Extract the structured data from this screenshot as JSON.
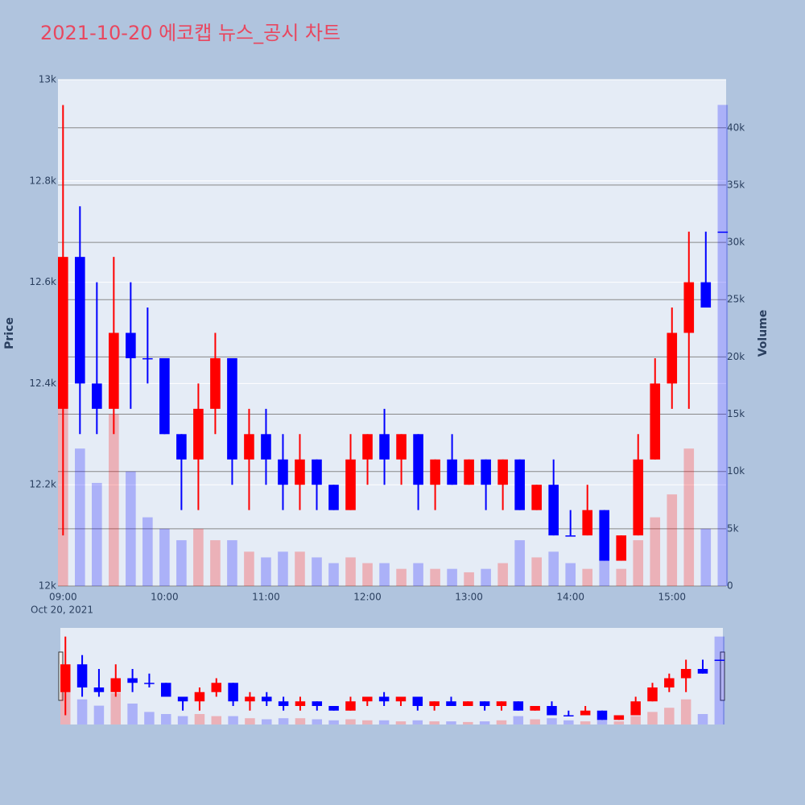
{
  "chart_data": {
    "type": "candlestick",
    "title": "2021-10-20 에코캡 뉴스_공시 차트",
    "ylabel": "Price",
    "y2label": "Volume",
    "x_date_label": "Oct 20, 2021",
    "increasing_color": "#ff0000",
    "decreasing_color": "#0000ff",
    "x": [
      "09:00",
      "09:10",
      "09:20",
      "09:30",
      "09:40",
      "09:50",
      "10:00",
      "10:10",
      "10:20",
      "10:30",
      "10:40",
      "10:50",
      "11:00",
      "11:10",
      "11:20",
      "11:30",
      "11:40",
      "11:50",
      "12:00",
      "12:10",
      "12:20",
      "12:30",
      "12:40",
      "12:50",
      "13:00",
      "13:10",
      "13:20",
      "13:30",
      "13:40",
      "13:50",
      "14:00",
      "14:10",
      "14:20",
      "14:30",
      "14:40",
      "14:50",
      "15:00",
      "15:10",
      "15:20",
      "15:30"
    ],
    "open": [
      12350,
      12650,
      12400,
      12350,
      12500,
      12450,
      12450,
      12300,
      12250,
      12350,
      12450,
      12250,
      12300,
      12250,
      12200,
      12250,
      12200,
      12150,
      12250,
      12300,
      12250,
      12300,
      12200,
      12250,
      12200,
      12250,
      12200,
      12250,
      12150,
      12200,
      12100,
      12100,
      12150,
      12050,
      12100,
      12250,
      12400,
      12500,
      12600,
      12700
    ],
    "high": [
      12950,
      12750,
      12600,
      12650,
      12600,
      12550,
      12450,
      12300,
      12400,
      12500,
      12450,
      12350,
      12350,
      12300,
      12300,
      12250,
      12200,
      12300,
      12300,
      12350,
      12300,
      12300,
      12250,
      12300,
      12250,
      12250,
      12250,
      12250,
      12200,
      12250,
      12150,
      12200,
      12150,
      12100,
      12300,
      12450,
      12550,
      12700,
      12700,
      12700
    ],
    "low": [
      12100,
      12300,
      12300,
      12300,
      12350,
      12400,
      12300,
      12150,
      12150,
      12300,
      12200,
      12150,
      12200,
      12150,
      12150,
      12150,
      12150,
      12150,
      12200,
      12200,
      12200,
      12150,
      12150,
      12200,
      12200,
      12150,
      12150,
      12150,
      12150,
      12100,
      12100,
      12100,
      12050,
      12050,
      12100,
      12250,
      12350,
      12350,
      12550,
      12700
    ],
    "close": [
      12650,
      12400,
      12350,
      12500,
      12450,
      12450,
      12300,
      12250,
      12350,
      12450,
      12250,
      12300,
      12250,
      12200,
      12250,
      12200,
      12150,
      12250,
      12300,
      12250,
      12300,
      12200,
      12250,
      12200,
      12250,
      12200,
      12250,
      12150,
      12200,
      12100,
      12100,
      12150,
      12050,
      12100,
      12250,
      12400,
      12500,
      12600,
      12550,
      12700
    ],
    "volume": [
      20000,
      12000,
      9000,
      15000,
      10000,
      6000,
      5000,
      4000,
      5000,
      4000,
      4000,
      3000,
      2500,
      3000,
      3000,
      2500,
      2000,
      2500,
      2000,
      2000,
      1500,
      2000,
      1500,
      1500,
      1200,
      1500,
      2000,
      4000,
      2500,
      3000,
      2000,
      1500,
      2500,
      1500,
      4000,
      6000,
      8000,
      12000,
      5000,
      42000
    ],
    "xlim": [
      "08:57",
      "15:32"
    ],
    "xticks": [
      "09:00",
      "10:00",
      "11:00",
      "12:00",
      "13:00",
      "14:00",
      "15:00"
    ],
    "ylim": [
      12000,
      13000
    ],
    "yticks": [
      {
        "value": 12000,
        "label": "12k"
      },
      {
        "value": 12200,
        "label": "12.2k"
      },
      {
        "value": 12400,
        "label": "12.4k"
      },
      {
        "value": 12600,
        "label": "12.6k"
      },
      {
        "value": 12800,
        "label": "12.8k"
      },
      {
        "value": 13000,
        "label": "13k"
      }
    ],
    "y2lim": [
      0,
      44200
    ],
    "y2ticks": [
      0,
      {
        "value": 5000,
        "label": "5k"
      },
      {
        "value": 10000,
        "label": "10k"
      },
      {
        "value": 15000,
        "label": "15k"
      },
      {
        "value": 20000,
        "label": "20k"
      },
      {
        "value": 25000,
        "label": "25k"
      },
      {
        "value": 30000,
        "label": "30k"
      },
      {
        "value": 35000,
        "label": "35k"
      },
      {
        "value": 40000,
        "label": "40k"
      }
    ],
    "grid": true,
    "range_slider": true
  }
}
